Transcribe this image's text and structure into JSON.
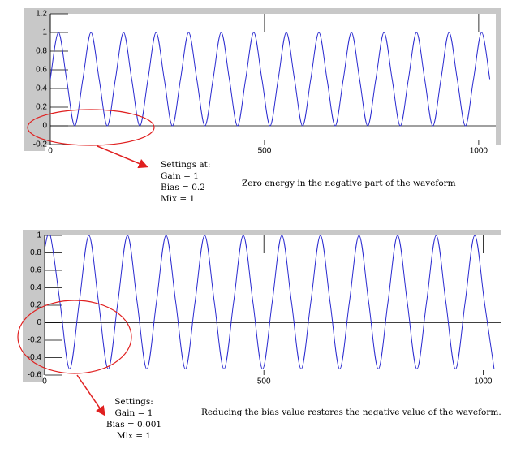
{
  "chart_data": [
    {
      "type": "line",
      "x": [
        0,
        19,
        38,
        57,
        76,
        95,
        114,
        133,
        152,
        171,
        190,
        209,
        228,
        247,
        266,
        285,
        304,
        323,
        342,
        361,
        380,
        399,
        418,
        437,
        456,
        475,
        494,
        513,
        532,
        551,
        570,
        589,
        608,
        627,
        646,
        665,
        684,
        703,
        722,
        741,
        760,
        779,
        798,
        817,
        836,
        855,
        874,
        893,
        912,
        931,
        950,
        969,
        988,
        1007,
        1026
      ],
      "series": [
        {
          "color": "#2a2ad0",
          "values": [
            0.5,
            1,
            0.5,
            0,
            0.5,
            1,
            0.5,
            0,
            0.5,
            1,
            0.5,
            0,
            0.5,
            1,
            0.5,
            0,
            0.5,
            1,
            0.5,
            0,
            0.5,
            1,
            0.5,
            0,
            0.5,
            1,
            0.5,
            0,
            0.5,
            1,
            0.5,
            0,
            0.5,
            1,
            0.5,
            0,
            0.5,
            1,
            0.5,
            0,
            0.5,
            1,
            0.5,
            0,
            0.5,
            1,
            0.5,
            0,
            0.5,
            1,
            0.5,
            0,
            0.5,
            1,
            0.5
          ]
        }
      ],
      "xlim": [
        0,
        1040
      ],
      "xticks": [
        0,
        500,
        1000
      ],
      "ylim": [
        -0.2,
        1.2
      ],
      "yticks": [
        -0.2,
        0,
        0.2,
        0.4,
        0.6,
        0.8,
        1,
        1.2
      ],
      "settings": [
        "Settings at:",
        "Gain = 1",
        "Bias = 0.2",
        "Mix = 1"
      ],
      "note": "Zero energy in the negative part of the waveform"
    },
    {
      "type": "line",
      "x": [
        0,
        13,
        35,
        57,
        79,
        101,
        123,
        145,
        167,
        189,
        211,
        233,
        255,
        277,
        299,
        321,
        343,
        365,
        387,
        409,
        431,
        453,
        475,
        497,
        519,
        541,
        563,
        585,
        607,
        629,
        651,
        673,
        695,
        717,
        739,
        761,
        783,
        805,
        827,
        849,
        871,
        893,
        915,
        937,
        959,
        981,
        1003,
        1025
      ],
      "series": [
        {
          "color": "#2a2ad0",
          "values": [
            0.85,
            1,
            0.235,
            -0.53,
            0.235,
            1,
            0.235,
            -0.53,
            0.235,
            1,
            0.235,
            -0.53,
            0.235,
            1,
            0.235,
            -0.53,
            0.235,
            1,
            0.235,
            -0.53,
            0.235,
            1,
            0.235,
            -0.53,
            0.235,
            1,
            0.235,
            -0.53,
            0.235,
            1,
            0.235,
            -0.53,
            0.235,
            1,
            0.235,
            -0.53,
            0.235,
            1,
            0.235,
            -0.53,
            0.235,
            1,
            0.235,
            -0.53,
            0.235,
            1,
            0.235,
            -0.53
          ]
        }
      ],
      "xlim": [
        0,
        1040
      ],
      "xticks": [
        0,
        500,
        1000
      ],
      "ylim": [
        -0.6,
        1
      ],
      "yticks": [
        -0.6,
        -0.4,
        -0.2,
        0,
        0.2,
        0.4,
        0.6,
        0.8,
        1
      ],
      "settings": [
        "Settings:",
        "Gain = 1",
        "Bias = 0.001",
        "Mix = 1"
      ],
      "note": "Reducing the bias value restores the negative value of the waveform."
    }
  ]
}
